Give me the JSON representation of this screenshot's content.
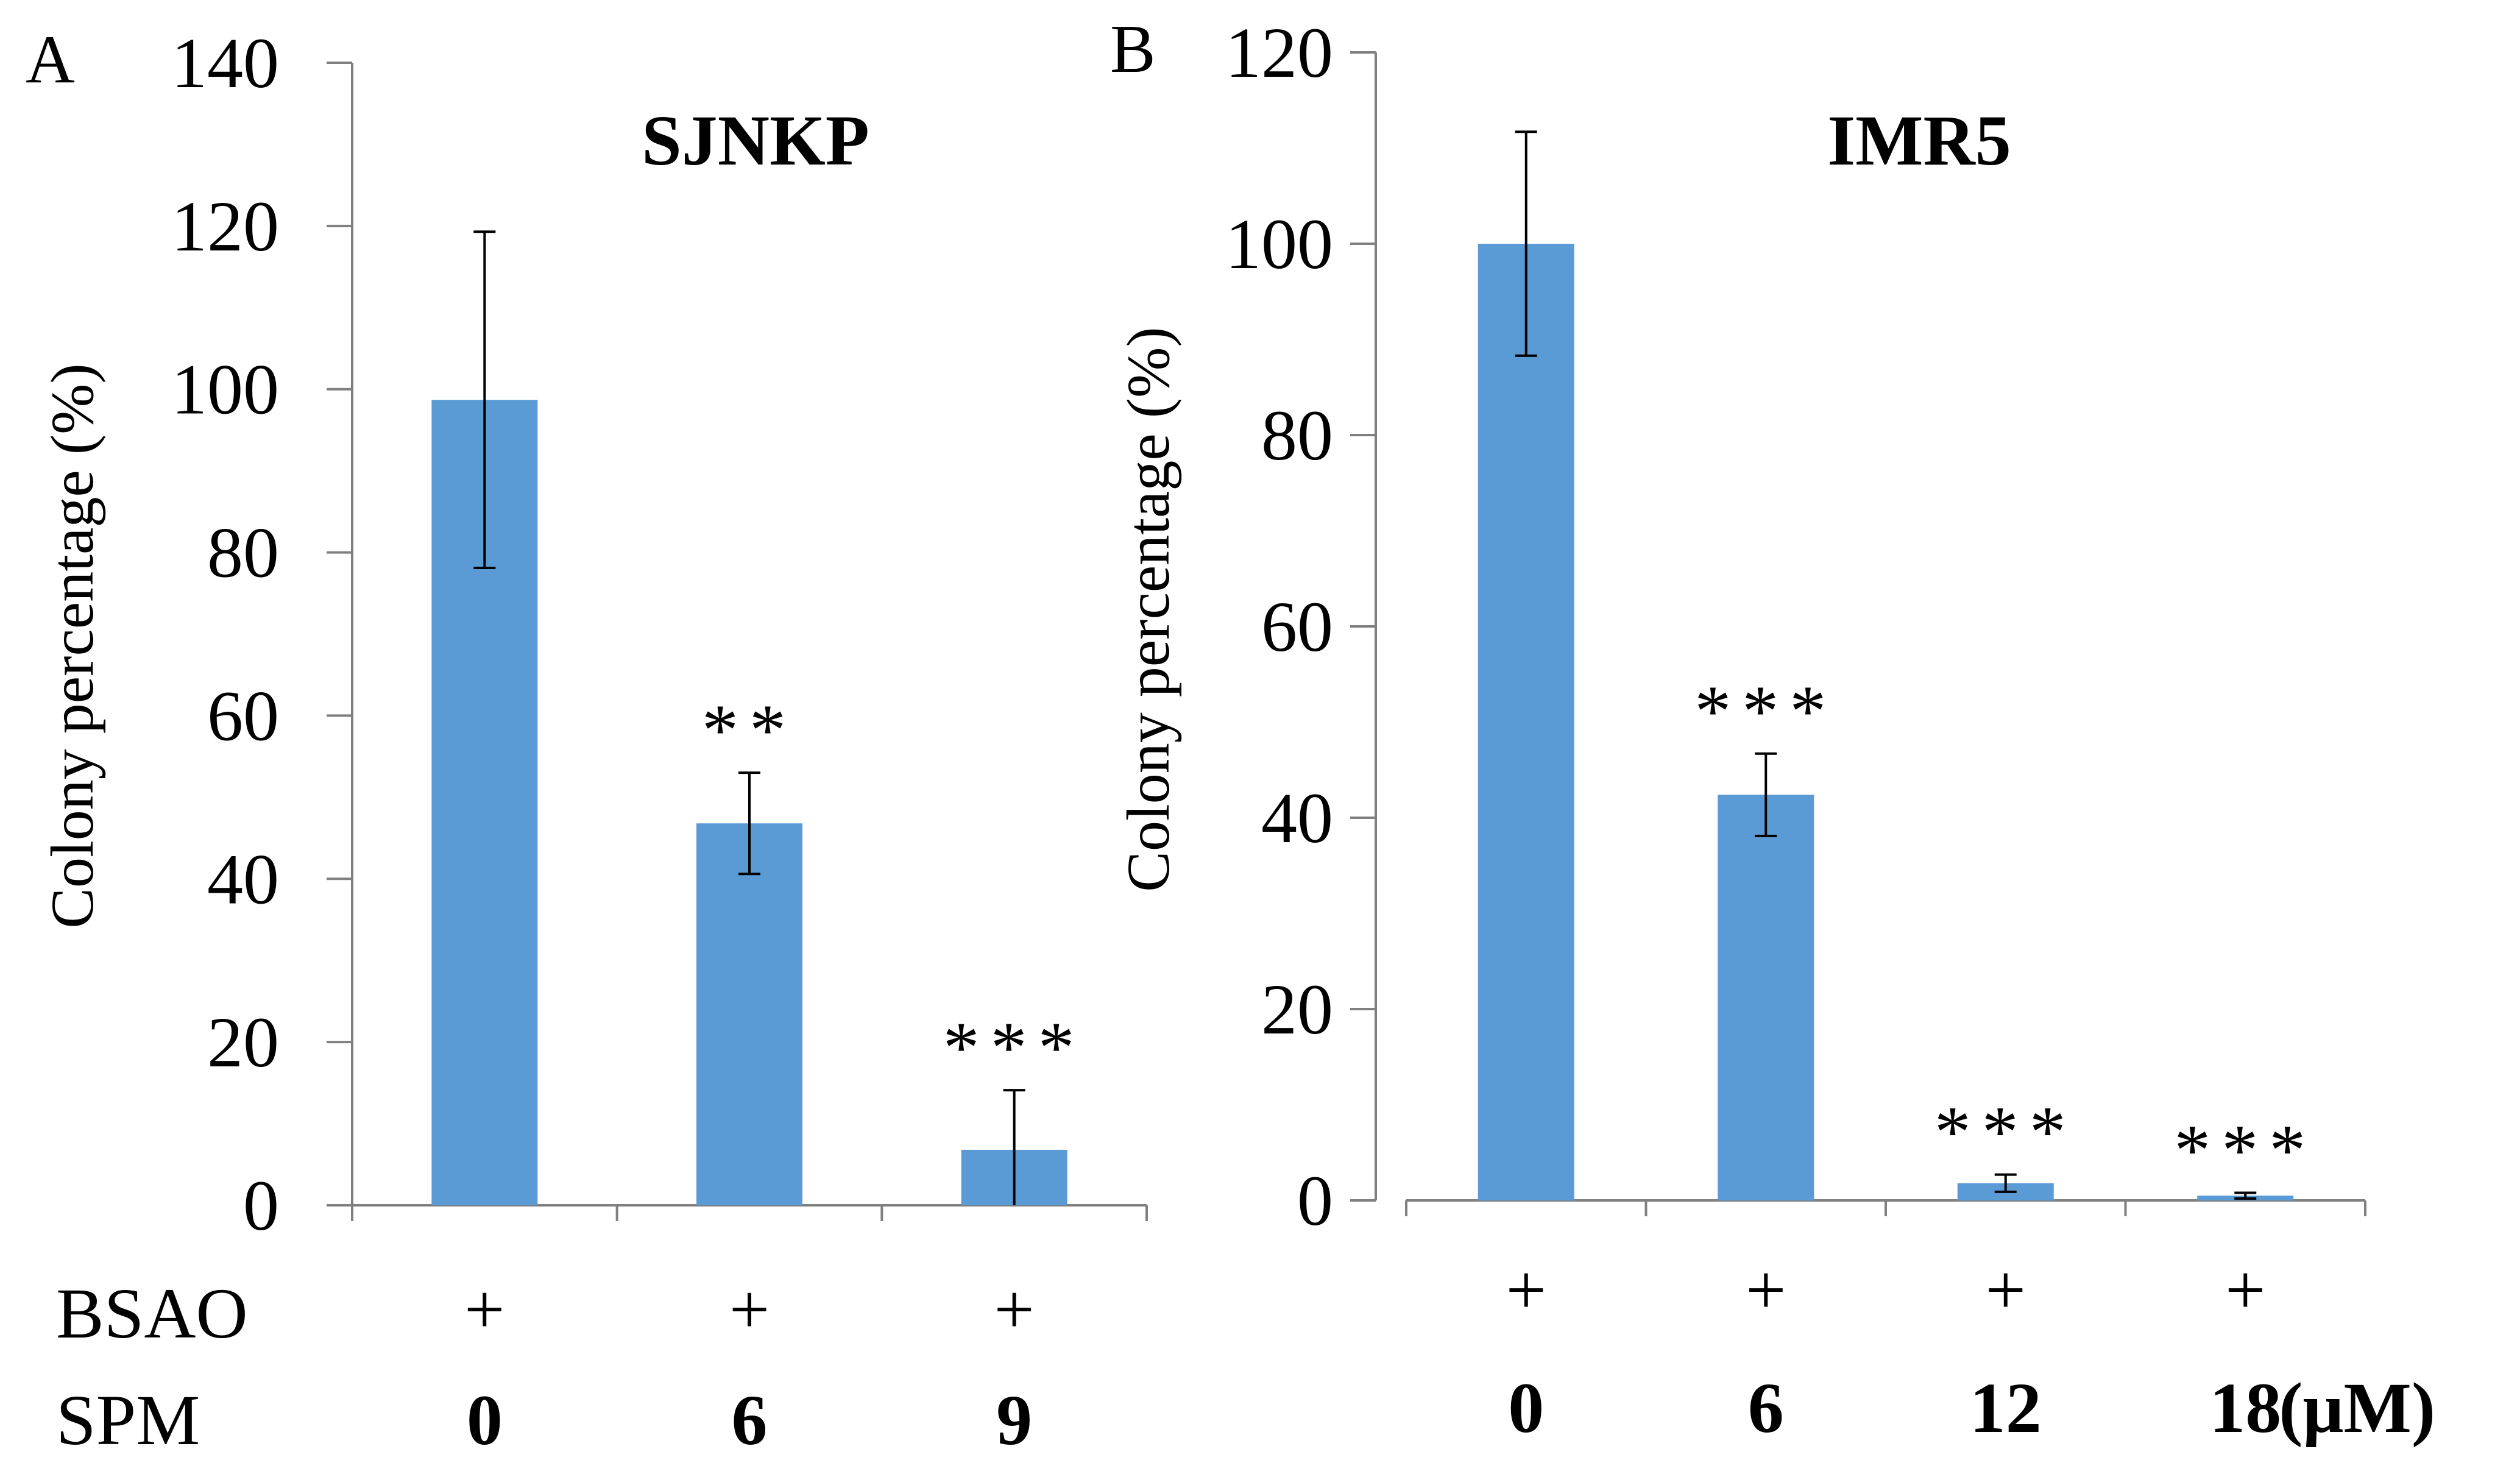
{
  "colors": {
    "bar": "#5B9BD5",
    "axis": "#808080",
    "error": "#000000",
    "text": "#000000"
  },
  "row_labels": {
    "bsao": "BSAO",
    "spm": "SPM"
  },
  "chart_data": [
    {
      "panel": "A",
      "type": "bar",
      "title": "SJNKP",
      "ylabel": "Colony percentage (%)",
      "ylim": [
        0,
        140
      ],
      "yticks": [
        0,
        20,
        40,
        60,
        80,
        100,
        120,
        140
      ],
      "categories": [
        "0",
        "6",
        "9"
      ],
      "bsao": [
        "+",
        "+",
        "+"
      ],
      "values": [
        98.7,
        46.8,
        6.8
      ],
      "errors": [
        20.6,
        6.2,
        7.3
      ],
      "significance": [
        "",
        "**",
        "***"
      ],
      "unit": ""
    },
    {
      "panel": "B",
      "type": "bar",
      "title": "IMR5",
      "ylabel": "Colony percentage (%)",
      "ylim": [
        0,
        120
      ],
      "yticks": [
        0,
        20,
        40,
        60,
        80,
        100,
        120
      ],
      "categories": [
        "0",
        "6",
        "12",
        "18"
      ],
      "bsao": [
        "+",
        "+",
        "+",
        "+"
      ],
      "values": [
        100,
        42.4,
        1.8,
        0.5
      ],
      "errors": [
        11.7,
        4.3,
        0.9,
        0.3
      ],
      "significance": [
        "",
        "***",
        "***",
        "***"
      ],
      "unit": "(μM)"
    }
  ]
}
